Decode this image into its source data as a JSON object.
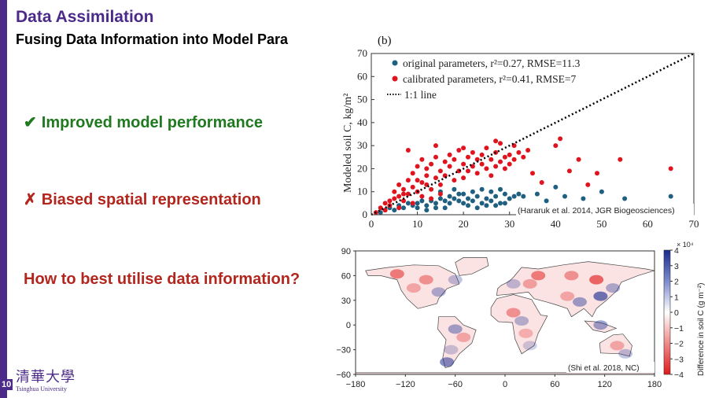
{
  "slide": {
    "title": "Data Assimilation",
    "subtitle": "Fusing Data Information into Model Para",
    "page_number": "10",
    "colors": {
      "accent": "#4b2a8a",
      "green": "#1f7a1f",
      "red": "#b3261e"
    }
  },
  "bullets": [
    {
      "mark": "✔",
      "text": "Improved model performance"
    },
    {
      "mark": "✗",
      "text": "Biased spatial representation"
    },
    {
      "mark": "",
      "text": "How to best utilise data information?"
    }
  ],
  "logo": {
    "chinese": "清華大學",
    "english": "Tsinghua University"
  },
  "chart_data": [
    {
      "type": "scatter",
      "panel_label": "(b)",
      "ylabel": "Modeled soil C, kg/m²",
      "xlabel": "",
      "xlim": [
        0,
        70
      ],
      "ylim": [
        0,
        70
      ],
      "xticks": [
        "0",
        "10",
        "20",
        "30",
        "40",
        "50",
        "60",
        "70"
      ],
      "yticks": [
        "0",
        "10",
        "20",
        "30",
        "40",
        "50",
        "60",
        "70"
      ],
      "legend_position": "top-left",
      "legend": [
        {
          "label": "original parameters, r²=0.27, RMSE=11.3",
          "color": "#1f5f80"
        },
        {
          "label": "calibrated parameters, r²=0.41, RMSE=7",
          "color": "#e0141e"
        },
        {
          "label": "1:1 line",
          "color": "#000000"
        }
      ],
      "citation": "(Hararuk et al. 2014, JGR Biogeosciences)",
      "series": [
        {
          "name": "original parameters, r²=0.27, RMSE=11.3",
          "color": "#1f5f80",
          "points": [
            [
              2,
              1
            ],
            [
              3,
              2
            ],
            [
              4,
              3
            ],
            [
              5,
              2
            ],
            [
              6,
              4
            ],
            [
              7,
              3
            ],
            [
              8,
              5
            ],
            [
              9,
              4
            ],
            [
              10,
              5
            ],
            [
              11,
              6
            ],
            [
              12,
              4
            ],
            [
              13,
              6
            ],
            [
              14,
              5
            ],
            [
              15,
              7
            ],
            [
              16,
              6
            ],
            [
              17,
              5
            ],
            [
              18,
              7
            ],
            [
              19,
              6
            ],
            [
              20,
              5
            ],
            [
              21,
              7
            ],
            [
              22,
              6
            ],
            [
              23,
              8
            ],
            [
              24,
              5
            ],
            [
              25,
              7
            ],
            [
              26,
              6
            ],
            [
              27,
              8
            ],
            [
              28,
              5
            ],
            [
              29,
              9
            ],
            [
              30,
              7
            ],
            [
              31,
              8
            ],
            [
              32,
              9
            ],
            [
              33,
              8
            ],
            [
              15,
              10
            ],
            [
              18,
              11
            ],
            [
              20,
              9
            ],
            [
              22,
              10
            ],
            [
              24,
              11
            ],
            [
              26,
              10
            ],
            [
              28,
              11
            ],
            [
              17,
              8
            ],
            [
              19,
              9
            ],
            [
              21,
              4
            ],
            [
              23,
              3
            ],
            [
              25,
              4
            ],
            [
              27,
              4
            ],
            [
              29,
              5
            ],
            [
              14,
              3
            ],
            [
              16,
              3
            ],
            [
              10,
              3
            ],
            [
              12,
              2
            ],
            [
              36,
              9
            ],
            [
              38,
              6
            ],
            [
              40,
              12
            ],
            [
              42,
              8
            ],
            [
              46,
              7
            ],
            [
              50,
              10
            ],
            [
              55,
              7
            ],
            [
              65,
              8
            ]
          ]
        },
        {
          "name": "calibrated parameters, r²=0.41, RMSE=7",
          "color": "#e0141e",
          "points": [
            [
              1,
              1
            ],
            [
              2,
              3
            ],
            [
              3,
              5
            ],
            [
              4,
              4
            ],
            [
              5,
              7
            ],
            [
              5,
              10
            ],
            [
              6,
              8
            ],
            [
              6,
              13
            ],
            [
              7,
              6
            ],
            [
              7,
              11
            ],
            [
              8,
              9
            ],
            [
              8,
              15
            ],
            [
              9,
              12
            ],
            [
              9,
              18
            ],
            [
              10,
              10
            ],
            [
              10,
              21
            ],
            [
              11,
              14
            ],
            [
              11,
              24
            ],
            [
              12,
              17
            ],
            [
              12,
              20
            ],
            [
              13,
              11
            ],
            [
              13,
              22
            ],
            [
              14,
              16
            ],
            [
              14,
              25
            ],
            [
              15,
              19
            ],
            [
              15,
              13
            ],
            [
              16,
              23
            ],
            [
              16,
              17
            ],
            [
              17,
              21
            ],
            [
              17,
              26
            ],
            [
              18,
              15
            ],
            [
              18,
              24
            ],
            [
              19,
              19
            ],
            [
              19,
              28
            ],
            [
              20,
              22
            ],
            [
              20,
              16
            ],
            [
              21,
              25
            ],
            [
              21,
              19
            ],
            [
              22,
              21
            ],
            [
              22,
              27
            ],
            [
              23,
              18
            ],
            [
              23,
              24
            ],
            [
              24,
              22
            ],
            [
              24,
              26
            ],
            [
              25,
              20
            ],
            [
              25,
              29
            ],
            [
              26,
              24
            ],
            [
              26,
              17
            ],
            [
              27,
              27
            ],
            [
              27,
              21
            ],
            [
              28,
              23
            ],
            [
              28,
              31
            ],
            [
              29,
              20
            ],
            [
              29,
              25
            ],
            [
              30,
              26
            ],
            [
              30,
              22
            ],
            [
              31,
              24
            ],
            [
              31,
              30
            ],
            [
              32,
              27
            ],
            [
              33,
              25
            ],
            [
              8,
              28
            ],
            [
              14,
              30
            ],
            [
              20,
              29
            ],
            [
              27,
              32
            ],
            [
              34,
              28
            ],
            [
              35,
              18
            ],
            [
              37,
              14
            ],
            [
              40,
              30
            ],
            [
              41,
              33
            ],
            [
              43,
              19
            ],
            [
              45,
              24
            ],
            [
              47,
              13
            ],
            [
              49,
              18
            ],
            [
              54,
              24
            ],
            [
              65,
              20
            ],
            [
              3,
              2
            ],
            [
              4,
              6
            ],
            [
              6,
              3
            ],
            [
              7,
              9
            ],
            [
              9,
              5
            ],
            [
              11,
              8
            ],
            [
              13,
              7
            ],
            [
              15,
              9
            ],
            [
              10,
              15
            ],
            [
              12,
              13
            ]
          ]
        }
      ]
    },
    {
      "type": "heatmap",
      "xticks": [
        "−180",
        "−120",
        "−60",
        "0",
        "60",
        "120",
        "180"
      ],
      "yticks": [
        "90",
        "60",
        "30",
        "0",
        "−30",
        "−60"
      ],
      "xlim": [
        -180,
        180
      ],
      "ylim": [
        -60,
        90
      ],
      "colorbar_label": "Difference in soil C (g m⁻²)",
      "colorbar_scale": "× 10⁴",
      "colorbar_ticks": [
        "4",
        "3",
        "2",
        "1",
        "0",
        "−1",
        "−2",
        "−3",
        "−4"
      ],
      "colorbar_range": [
        -4,
        4
      ],
      "citation": "(Shi et al. 2018, NC)",
      "colors": {
        "positive": "#1b2a8f",
        "negative": "#e01a1a",
        "zero": "#ffffff"
      }
    }
  ]
}
